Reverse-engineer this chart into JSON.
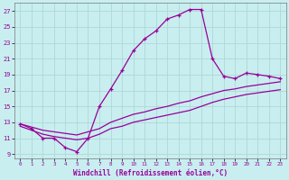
{
  "xlabel": "Windchill (Refroidissement éolien,°C)",
  "background_color": "#c8eef0",
  "line_color": "#990099",
  "grid_color": "#b0d8d8",
  "xlim": [
    -0.5,
    23.5
  ],
  "ylim": [
    8.5,
    28.0
  ],
  "yticks": [
    9,
    11,
    13,
    15,
    17,
    19,
    21,
    23,
    25,
    27
  ],
  "xticks": [
    0,
    1,
    2,
    3,
    4,
    5,
    6,
    7,
    8,
    9,
    10,
    11,
    12,
    13,
    14,
    15,
    16,
    17,
    18,
    19,
    20,
    21,
    22,
    23
  ],
  "series_main_x": [
    0,
    1,
    2,
    3,
    4,
    5,
    6,
    7,
    8,
    9,
    10,
    11,
    12,
    13,
    14,
    15,
    16,
    17,
    18,
    19,
    20,
    21,
    22,
    23
  ],
  "series_main_y": [
    12.8,
    12.2,
    11.0,
    11.0,
    9.8,
    9.3,
    11.0,
    15.0,
    17.2,
    19.5,
    22.0,
    23.5,
    24.5,
    26.0,
    26.5,
    27.2,
    27.2,
    21.0,
    18.8,
    18.5,
    19.2,
    19.0,
    18.8,
    18.5
  ],
  "series_upper_x": [
    0,
    1,
    2,
    3,
    4,
    5,
    6,
    7,
    8,
    9,
    10,
    11,
    12,
    13,
    14,
    15,
    16,
    17,
    18,
    19,
    20,
    21,
    22,
    23
  ],
  "series_upper_y": [
    12.8,
    12.4,
    12.0,
    11.8,
    11.6,
    11.4,
    11.8,
    12.2,
    13.0,
    13.5,
    14.0,
    14.3,
    14.7,
    15.0,
    15.4,
    15.7,
    16.2,
    16.6,
    17.0,
    17.2,
    17.5,
    17.7,
    17.9,
    18.1
  ],
  "series_lower_x": [
    0,
    1,
    2,
    3,
    4,
    5,
    6,
    7,
    8,
    9,
    10,
    11,
    12,
    13,
    14,
    15,
    16,
    17,
    18,
    19,
    20,
    21,
    22,
    23
  ],
  "series_lower_y": [
    12.5,
    12.0,
    11.5,
    11.2,
    11.0,
    10.8,
    11.0,
    11.5,
    12.2,
    12.5,
    13.0,
    13.3,
    13.6,
    13.9,
    14.2,
    14.5,
    15.0,
    15.5,
    15.9,
    16.2,
    16.5,
    16.7,
    16.9,
    17.1
  ]
}
